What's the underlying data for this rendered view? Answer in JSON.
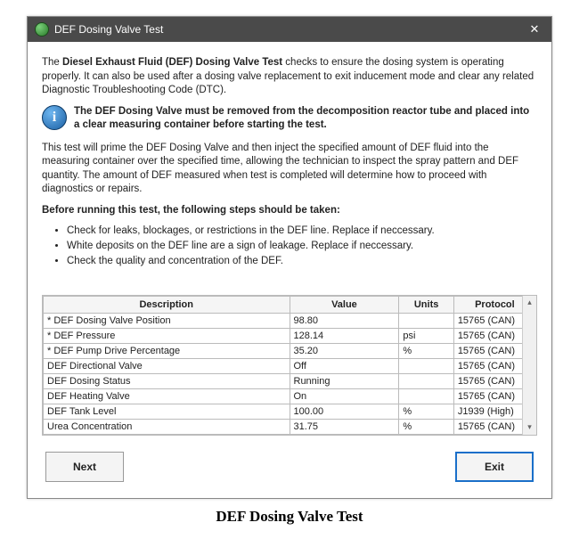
{
  "window": {
    "title": "DEF Dosing Valve Test",
    "close_glyph": "✕"
  },
  "intro": {
    "prefix": "The ",
    "bold1": "Diesel Exhaust Fluid (DEF) Dosing Valve Test",
    "rest": " checks to ensure the dosing system is operating properly. It can also be used after a dosing valve replacement to exit inducement mode and clear any related Diagnostic Troubleshooting Code (DTC)."
  },
  "info": {
    "icon_glyph": "i",
    "text": "The DEF Dosing Valve must be removed from the decomposition reactor tube and placed into a clear measuring container before starting the test."
  },
  "para2": "This test will prime the DEF Dosing Valve and then inject the specified amount of DEF fluid into the measuring container over the specified time, allowing the technician to inspect the spray pattern and DEF quantity. The amount of DEF measured when test is completed will determine how to proceed with diagnostics or repairs.",
  "steps_heading": "Before running this test, the following steps should be taken:",
  "steps": [
    "Check for leaks, blockages, or restrictions in the DEF line.  Replace if neccessary.",
    "White deposits on the DEF line are a sign of leakage. Replace if neccessary.",
    "Check the quality and concentration of the DEF."
  ],
  "table": {
    "headers": {
      "desc": "Description",
      "value": "Value",
      "units": "Units",
      "protocol": "Protocol"
    },
    "rows": [
      {
        "desc": "* DEF Dosing Valve Position",
        "value": "98.80",
        "units": "",
        "protocol": "15765 (CAN)"
      },
      {
        "desc": "* DEF Pressure",
        "value": "128.14",
        "units": "psi",
        "protocol": "15765 (CAN)"
      },
      {
        "desc": "* DEF Pump Drive Percentage",
        "value": "35.20",
        "units": "%",
        "protocol": "15765 (CAN)"
      },
      {
        "desc": "DEF Directional Valve",
        "value": "Off",
        "units": "",
        "protocol": "15765 (CAN)"
      },
      {
        "desc": "DEF Dosing Status",
        "value": "Running",
        "units": "",
        "protocol": "15765 (CAN)"
      },
      {
        "desc": "DEF Heating Valve",
        "value": "On",
        "units": "",
        "protocol": "15765 (CAN)"
      },
      {
        "desc": "DEF Tank Level",
        "value": "100.00",
        "units": "%",
        "protocol": "J1939 (High)"
      },
      {
        "desc": "Urea Concentration",
        "value": "31.75",
        "units": "%",
        "protocol": "15765 (CAN)"
      }
    ]
  },
  "buttons": {
    "next": "Next",
    "exit": "Exit"
  },
  "caption": "DEF Dosing Valve Test",
  "colors": {
    "titlebar_bg": "#4a4a4a",
    "titlebar_fg": "#ffffff",
    "exit_border": "#1a6fc9",
    "table_border": "#bbbbbb",
    "header_bg": "#f5f5f5"
  }
}
